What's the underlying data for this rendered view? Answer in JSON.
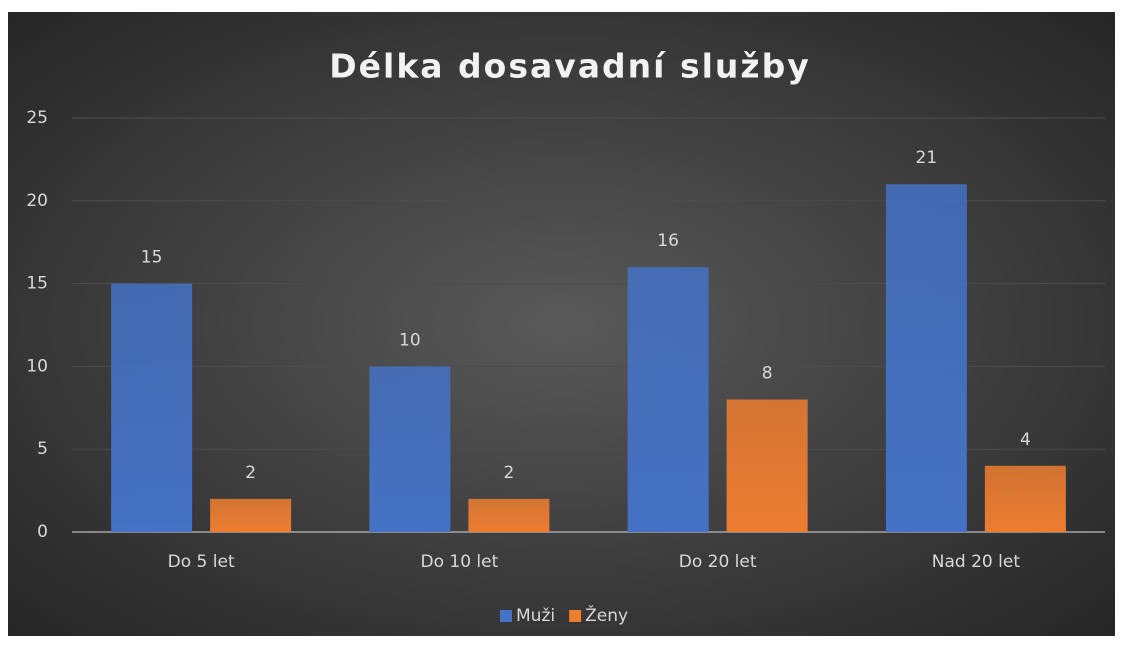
{
  "chart_data": {
    "type": "bar",
    "title": "Délka dosavadní služby",
    "categories": [
      "Do 5 let",
      "Do 10 let",
      "Do 20 let",
      "Nad 20 let"
    ],
    "series": [
      {
        "name": "Muži",
        "color": "#4472c4",
        "values": [
          15,
          10,
          16,
          21
        ]
      },
      {
        "name": "Ženy",
        "color": "#ed7d31",
        "values": [
          2,
          2,
          8,
          4
        ]
      }
    ],
    "ylim": [
      0,
      25
    ],
    "yticks": [
      0,
      5,
      10,
      15,
      20,
      25
    ],
    "grid": true,
    "legend": "bottom"
  }
}
